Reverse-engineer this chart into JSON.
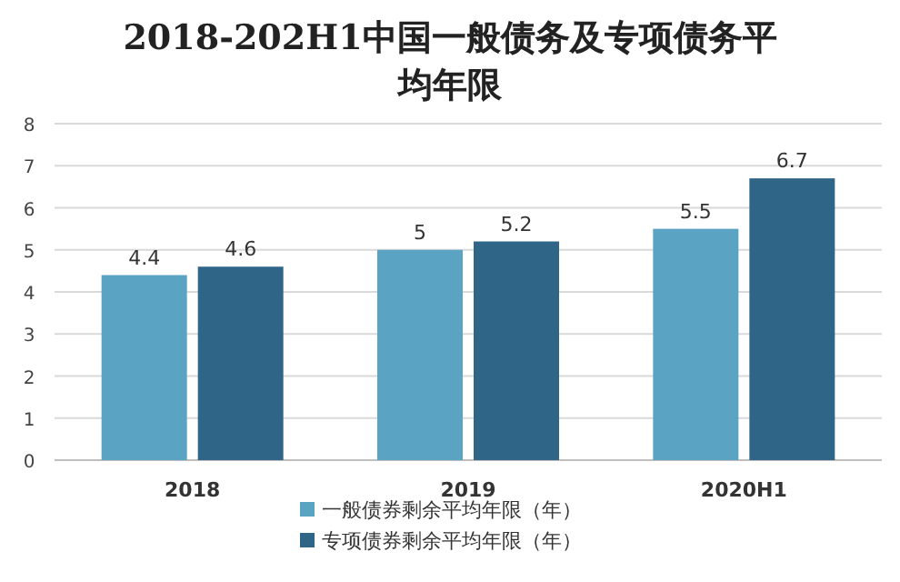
{
  "chart_data": {
    "type": "bar",
    "title": "2018-202H1中国一般债务及专项债务平均年限",
    "categories": [
      "2018",
      "2019",
      "2020H1"
    ],
    "series": [
      {
        "name": "一般债券剩余平均年限（年）",
        "color": "#5ba3c2",
        "values": [
          4.4,
          5,
          5.5
        ]
      },
      {
        "name": "专项债券剩余平均年限（年）",
        "color": "#2f6688",
        "values": [
          4.6,
          5.2,
          6.7
        ]
      }
    ],
    "ylim": [
      0,
      8
    ],
    "yticks": [
      0,
      1,
      2,
      3,
      4,
      5,
      6,
      7,
      8
    ],
    "grid": "y",
    "data_labels": true,
    "legend": "bottom"
  }
}
